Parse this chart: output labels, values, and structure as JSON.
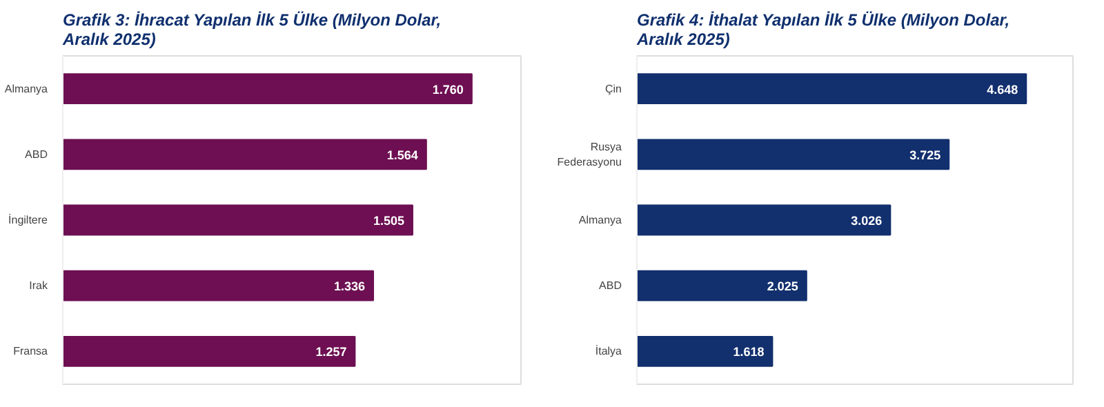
{
  "chart_data": [
    {
      "type": "bar",
      "orientation": "horizontal",
      "title": "Grafik 3: İhracat Yapılan İlk 5 Ülke (Milyon Dolar, Aralık 2025)",
      "categories": [
        "Almanya",
        "ABD",
        "İngiltere",
        "Irak",
        "Fransa"
      ],
      "series": [
        {
          "color": "#6d0f52",
          "values": [
            1760,
            1564,
            1505,
            1336,
            1257
          ],
          "value_labels": [
            "1.760",
            "1.564",
            "1.505",
            "1.336",
            "1.257"
          ]
        }
      ],
      "tick_labels": "y"
    },
    {
      "type": "bar",
      "orientation": "horizontal",
      "title": "Grafik 4: İthalat Yapılan İlk 5 Ülke (Milyon Dolar, Aralık 2025)",
      "categories": [
        "Çin",
        "Rusya Federasyonu",
        "Almanya",
        "ABD",
        "İtalya"
      ],
      "series": [
        {
          "color": "#122f6e",
          "values": [
            4648,
            3725,
            3026,
            2025,
            1618
          ],
          "value_labels": [
            "4.648",
            "3.725",
            "3.026",
            "2.025",
            "1.618"
          ]
        }
      ],
      "tick_labels": "y"
    }
  ]
}
